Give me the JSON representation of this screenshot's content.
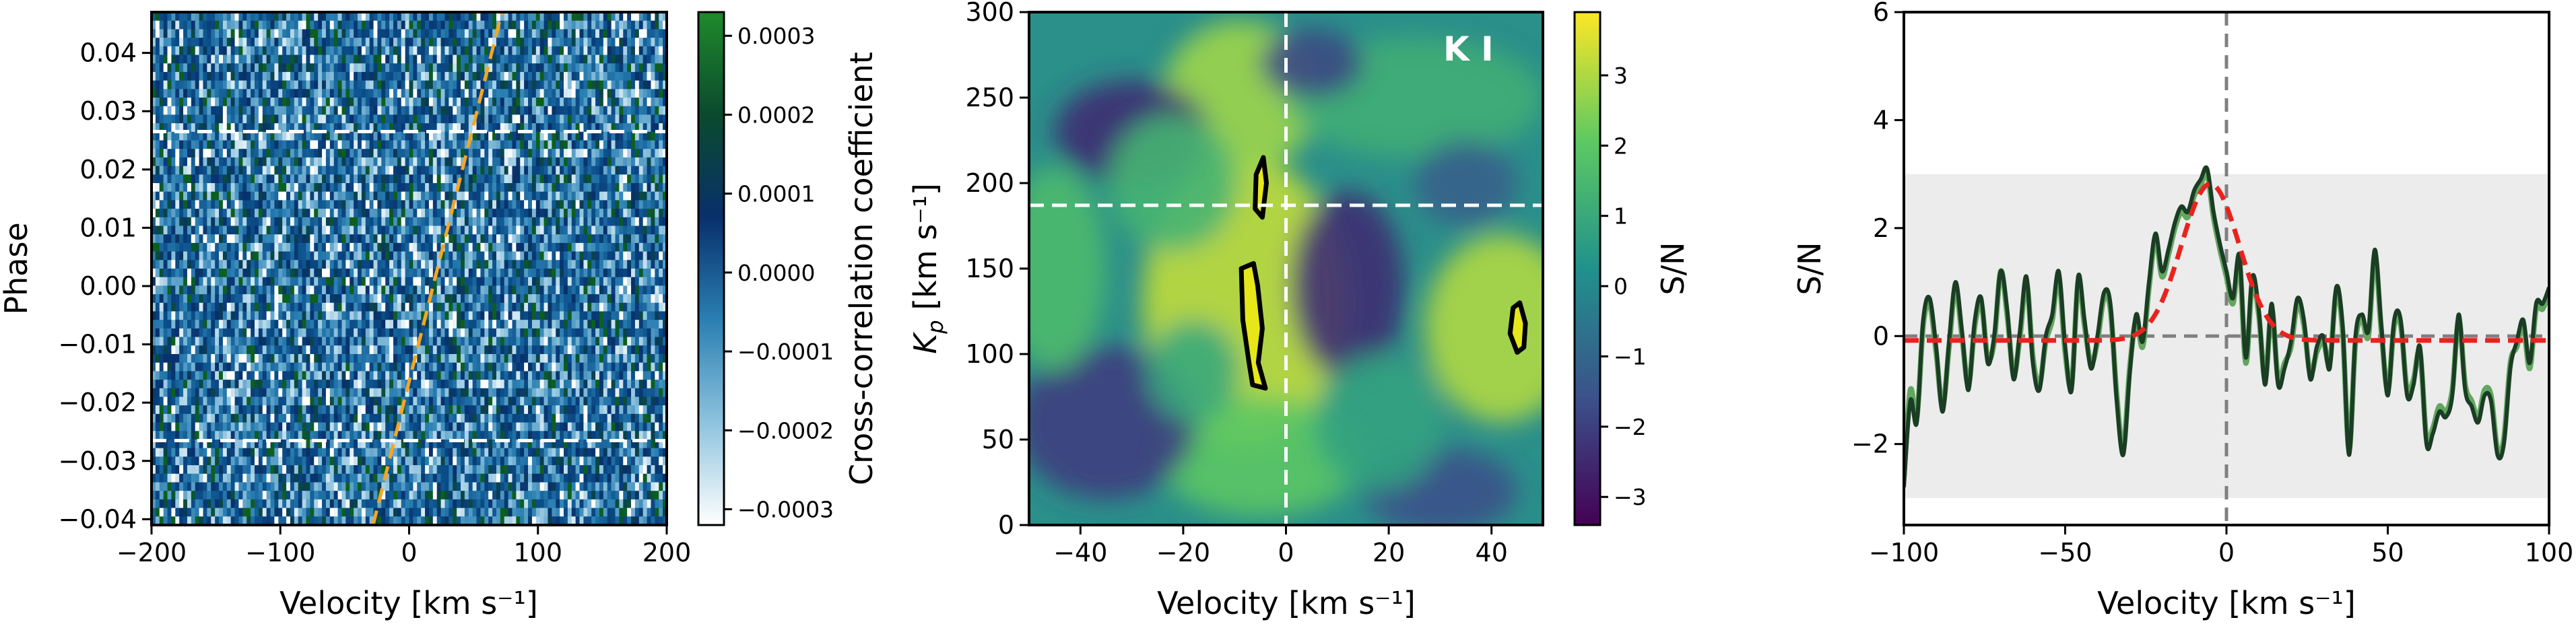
{
  "chart_data": [
    {
      "type": "heatmap",
      "panel": "left",
      "xlabel": "Velocity [km s⁻¹]",
      "ylabel": "Phase",
      "xlim": [
        -200,
        200
      ],
      "ylim": [
        -0.041,
        0.047
      ],
      "xticks": [
        "−200",
        "−100",
        "0",
        "100",
        "200"
      ],
      "xtick_values": [
        -200,
        -100,
        0,
        100,
        200
      ],
      "yticks": [
        "−0.04",
        "−0.03",
        "−0.02",
        "−0.01",
        "0.00",
        "0.01",
        "0.02",
        "0.03",
        "0.04"
      ],
      "ytick_values": [
        -0.04,
        -0.03,
        -0.02,
        -0.01,
        0.0,
        0.01,
        0.02,
        0.03,
        0.04
      ],
      "hlines_phase": [
        0.0265,
        -0.0265
      ],
      "orbit_trace": {
        "phase": [
          -0.041,
          0.047
        ],
        "velocity": [
          -28,
          72
        ],
        "color": "#f5a623"
      },
      "colorbar": {
        "label": "Cross-correlation coefficient",
        "range": [
          -0.00032,
          0.00033
        ],
        "ticks": [
          "−0.0003",
          "−0.0002",
          "−0.0001",
          "0.0000",
          "0.0001",
          "0.0002",
          "0.0003"
        ],
        "tick_values": [
          -0.0003,
          -0.0002,
          -0.0001,
          0.0,
          0.0001,
          0.0002,
          0.0003
        ],
        "colors": [
          "#ffffff",
          "#2a7fb2",
          "#08306b",
          "#0b2a5c",
          "#0c5f1f",
          "#1f8a2b"
        ]
      },
      "grid": {
        "rows": 60,
        "cols": 130
      }
    },
    {
      "type": "heatmap",
      "panel": "middle",
      "title": "K I",
      "xlabel": "Velocity [km s⁻¹]",
      "ylabel_main": "K",
      "ylabel_sub": "p",
      "ylabel_unit": " [km s⁻¹]",
      "xlim": [
        -50,
        50
      ],
      "ylim": [
        0,
        300
      ],
      "xticks": [
        "−40",
        "−20",
        "0",
        "20",
        "40"
      ],
      "xtick_values": [
        -40,
        -20,
        0,
        20,
        40
      ],
      "yticks": [
        "0",
        "50",
        "100",
        "150",
        "200",
        "250",
        "300"
      ],
      "ytick_values": [
        0,
        50,
        100,
        150,
        200,
        250,
        300
      ],
      "hline_kp": 187,
      "vline_v": 0,
      "contours": [
        {
          "points": [
            [
              -4.4,
              215
            ],
            [
              -3.8,
              200
            ],
            [
              -4.6,
              180
            ],
            [
              -6,
              185
            ],
            [
              -5.8,
              205
            ]
          ]
        },
        {
          "points": [
            [
              -4,
              80
            ],
            [
              -5.4,
              95
            ],
            [
              -4.6,
              115
            ],
            [
              -5.5,
              140
            ],
            [
              -6.3,
              153
            ],
            [
              -8.7,
              150
            ],
            [
              -8.4,
              120
            ],
            [
              -7.2,
              95
            ],
            [
              -6.5,
              82
            ]
          ]
        },
        {
          "points": [
            [
              45.5,
              130
            ],
            [
              46.6,
              118
            ],
            [
              46.3,
              104
            ],
            [
              45,
              101
            ],
            [
              43.6,
              112
            ],
            [
              44.2,
              127
            ]
          ]
        }
      ],
      "colorbar": {
        "label": "S/N",
        "range": [
          -3.4,
          3.9
        ],
        "ticks": [
          "−3",
          "−2",
          "−1",
          "0",
          "1",
          "2",
          "3"
        ],
        "tick_values": [
          -3,
          -2,
          -1,
          0,
          1,
          2,
          3
        ],
        "colors": [
          "#440154",
          "#3b528b",
          "#21918c",
          "#5ec962",
          "#fde725"
        ]
      }
    },
    {
      "type": "line",
      "panel": "right",
      "xlabel": "Velocity [km s⁻¹]",
      "ylabel": "S/N",
      "xlim": [
        -100,
        100
      ],
      "ylim": [
        -3.5,
        6
      ],
      "xticks": [
        "−100",
        "−50",
        "0",
        "50",
        "100"
      ],
      "xtick_values": [
        -100,
        -50,
        0,
        50,
        100
      ],
      "yticks": [
        "−2",
        "0",
        "2",
        "4",
        "6"
      ],
      "ytick_values": [
        -2,
        0,
        2,
        4,
        6
      ],
      "shaded_band": [
        -3,
        3
      ],
      "hline": 0,
      "vline": 0,
      "series": [
        {
          "name": "S/N (light)",
          "color": "#63a660",
          "x": [
            -100,
            -98,
            -96,
            -94,
            -92,
            -90,
            -88,
            -86,
            -84,
            -82,
            -80,
            -78,
            -76,
            -74,
            -72,
            -70,
            -68,
            -66,
            -64,
            -62,
            -60,
            -58,
            -56,
            -54,
            -52,
            -50,
            -48,
            -46,
            -44,
            -42,
            -40,
            -38,
            -36,
            -34,
            -32,
            -30,
            -28,
            -26,
            -24,
            -22,
            -20,
            -18,
            -16,
            -14,
            -12,
            -10,
            -8,
            -6,
            -4,
            -2,
            0,
            2,
            4,
            6,
            8,
            10,
            12,
            14,
            16,
            18,
            20,
            22,
            24,
            26,
            28,
            30,
            32,
            34,
            36,
            38,
            40,
            42,
            44,
            46,
            48,
            50,
            52,
            54,
            56,
            58,
            60,
            62,
            64,
            66,
            68,
            70,
            72,
            74,
            76,
            78,
            80,
            82,
            84,
            86,
            88,
            90,
            92,
            94,
            96,
            98,
            100
          ],
          "y": [
            -2.6,
            -1.0,
            -1.5,
            0.2,
            0.6,
            -0.3,
            -1.3,
            -0.2,
            0.9,
            0.0,
            -0.9,
            0.2,
            0.6,
            -0.4,
            -0.1,
            1.2,
            0.4,
            -0.7,
            0.0,
            1.0,
            -0.4,
            -0.9,
            -0.1,
            0.3,
            1.1,
            -0.3,
            -0.9,
            1.0,
            0.2,
            -0.5,
            -0.1,
            0.7,
            0.5,
            -1.1,
            -2.1,
            -0.6,
            0.3,
            -0.2,
            0.9,
            1.8,
            1.1,
            1.5,
            2.0,
            2.3,
            2.2,
            2.6,
            2.8,
            3.0,
            2.2,
            1.6,
            1.1,
            0.6,
            1.4,
            -0.5,
            1.0,
            0.4,
            -0.8,
            0.5,
            -0.8,
            -0.5,
            -0.2,
            0.6,
            0.2,
            -0.7,
            -0.3,
            -0.1,
            -0.5,
            0.8,
            0.1,
            -2.1,
            -0.1,
            0.3,
            0.0,
            1.5,
            0.1,
            -1.0,
            0.2,
            0.2,
            -1.0,
            -0.8,
            -0.3,
            -1.9,
            -1.7,
            -1.3,
            -1.4,
            -1.0,
            0.3,
            -0.9,
            -1.2,
            -1.5,
            -1.0,
            -1.1,
            -2.1,
            -1.9,
            -0.5,
            -0.2,
            0.2,
            -0.6,
            0.5,
            0.5,
            0.8
          ]
        },
        {
          "name": "S/N (dark)",
          "color": "#1a3d24",
          "x": [
            -100,
            -98,
            -96,
            -94,
            -92,
            -90,
            -88,
            -86,
            -84,
            -82,
            -80,
            -78,
            -76,
            -74,
            -72,
            -70,
            -68,
            -66,
            -64,
            -62,
            -60,
            -58,
            -56,
            -54,
            -52,
            -50,
            -48,
            -46,
            -44,
            -42,
            -40,
            -38,
            -36,
            -34,
            -32,
            -30,
            -28,
            -26,
            -24,
            -22,
            -20,
            -18,
            -16,
            -14,
            -12,
            -10,
            -8,
            -6,
            -4,
            -2,
            0,
            2,
            4,
            6,
            8,
            10,
            12,
            14,
            16,
            18,
            20,
            22,
            24,
            26,
            28,
            30,
            32,
            34,
            36,
            38,
            40,
            42,
            44,
            46,
            48,
            50,
            52,
            54,
            56,
            58,
            60,
            62,
            64,
            66,
            68,
            70,
            72,
            74,
            76,
            78,
            80,
            82,
            84,
            86,
            88,
            90,
            92,
            94,
            96,
            98,
            100
          ],
          "y": [
            -2.8,
            -1.2,
            -1.6,
            0.3,
            0.7,
            -0.2,
            -1.4,
            -0.1,
            1.0,
            0.1,
            -1.0,
            0.3,
            0.7,
            -0.5,
            0.0,
            1.2,
            0.5,
            -0.8,
            0.1,
            1.1,
            -0.5,
            -1.0,
            0.0,
            0.4,
            1.2,
            -0.2,
            -1.0,
            1.1,
            0.3,
            -0.6,
            0.0,
            0.8,
            0.6,
            -1.2,
            -2.2,
            -0.7,
            0.4,
            -0.1,
            1.0,
            1.9,
            1.2,
            1.6,
            2.1,
            2.4,
            2.3,
            2.7,
            2.9,
            3.1,
            2.3,
            1.7,
            1.2,
            0.7,
            1.5,
            -0.4,
            1.1,
            0.5,
            -0.9,
            0.6,
            -0.9,
            -0.6,
            -0.1,
            0.7,
            0.3,
            -0.8,
            -0.2,
            0.0,
            -0.6,
            0.9,
            0.2,
            -2.2,
            0.0,
            0.4,
            0.1,
            1.6,
            0.2,
            -1.1,
            0.3,
            0.3,
            -1.1,
            -0.9,
            -0.2,
            -2.0,
            -1.8,
            -1.4,
            -1.5,
            -1.1,
            0.4,
            -1.0,
            -1.3,
            -1.6,
            -1.1,
            -1.2,
            -2.2,
            -2.0,
            -0.6,
            -0.1,
            0.3,
            -0.5,
            0.6,
            0.6,
            0.9
          ]
        },
        {
          "name": "Gaussian fit",
          "color": "#e8231f",
          "style": "dashed",
          "gaussian": {
            "amplitude": 2.9,
            "center": -5,
            "sigma": 9,
            "offset": -0.08
          }
        }
      ]
    }
  ]
}
